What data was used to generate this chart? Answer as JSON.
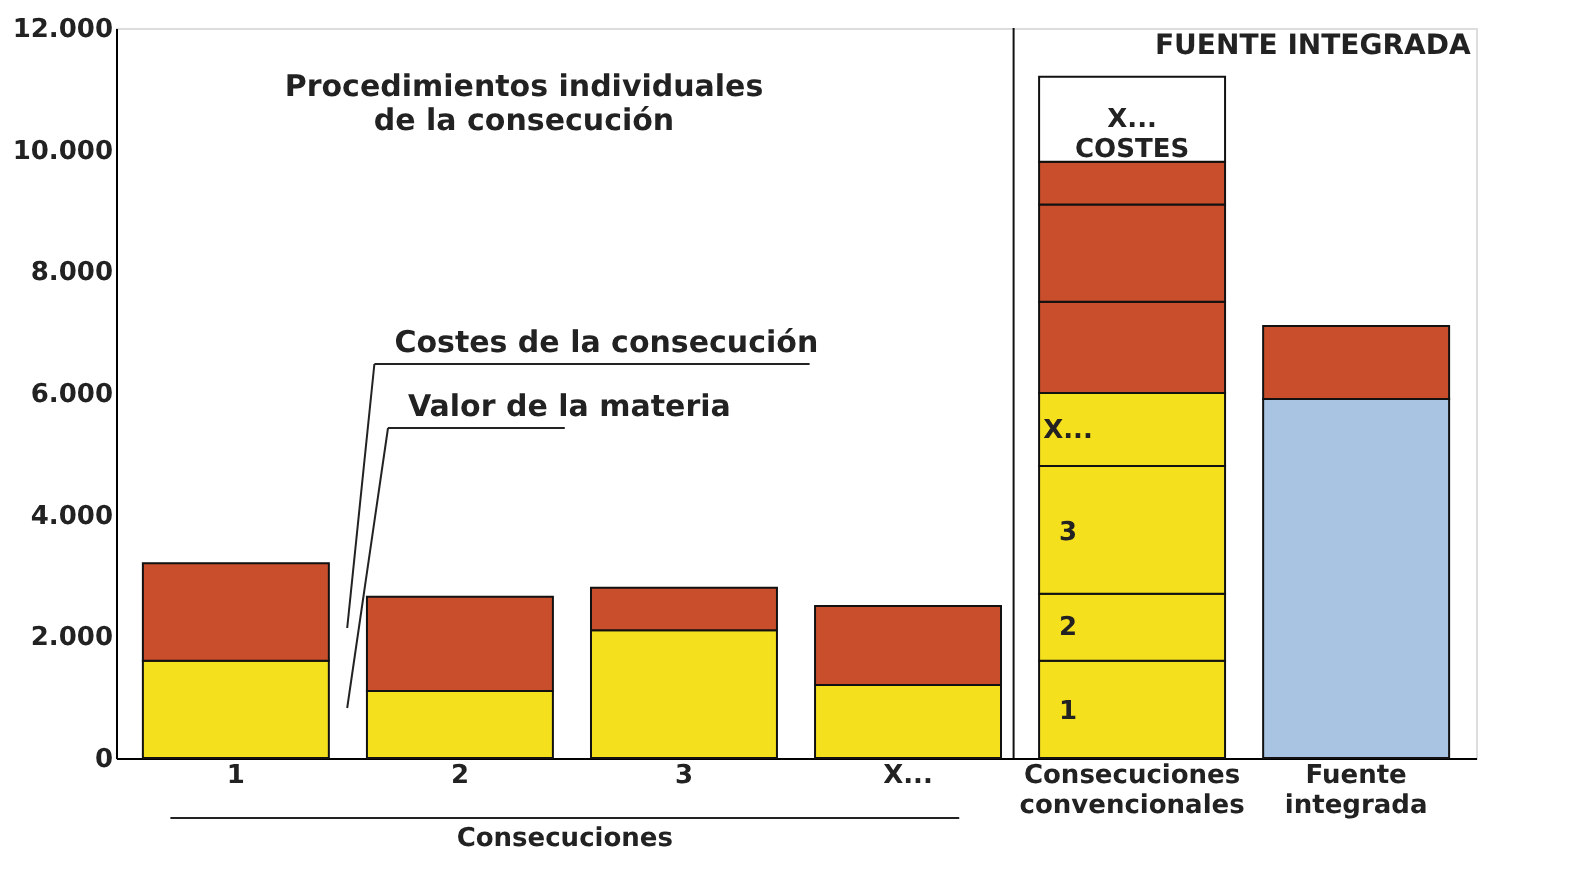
{
  "chart_data": {
    "type": "bar",
    "stacked": true,
    "categories": [
      "1",
      "2",
      "3",
      "X...",
      "Consecuciones convencionales",
      "Fuente integrada"
    ],
    "xlabel": "Consecuciones",
    "series": [
      {
        "color": "#f5e01e",
        "values": [
          1600,
          1100,
          2100,
          1200,
          1600,
          null
        ]
      },
      {
        "color": "#f5e01e",
        "values": [
          null,
          null,
          null,
          null,
          1100,
          null
        ]
      },
      {
        "color": "#f5e01e",
        "values": [
          null,
          null,
          null,
          null,
          2100,
          null
        ]
      },
      {
        "color": "#f5e01e",
        "values": [
          null,
          null,
          null,
          null,
          1200,
          null
        ]
      },
      {
        "color": "#a9c4e2",
        "values": [
          null,
          null,
          null,
          null,
          null,
          5900
        ]
      },
      {
        "color": "#c94f2c",
        "values": [
          1600,
          1550,
          700,
          1300,
          1500,
          1200
        ]
      },
      {
        "color": "#c94f2c",
        "values": [
          null,
          null,
          null,
          null,
          1600,
          null
        ]
      },
      {
        "color": "#c94f2c",
        "values": [
          null,
          null,
          null,
          null,
          700,
          null
        ]
      },
      {
        "color": "#ffffff",
        "values": [
          null,
          null,
          null,
          null,
          1400,
          null
        ],
        "value_labels": [
          null,
          null,
          null,
          null,
          "X...\nCOSTES",
          null
        ]
      }
    ],
    "ylim": [
      0,
      12000
    ],
    "yticks": [
      0,
      {
        "value": 2000,
        "label": "2.000"
      },
      {
        "value": 4000,
        "label": "4.000"
      },
      {
        "value": 6000,
        "label": "6.000"
      },
      {
        "value": 8000,
        "label": "8.000"
      },
      {
        "value": 10000,
        "label": "10.000"
      },
      {
        "value": 12000,
        "label": "12.000"
      }
    ],
    "annotations": [
      "Procedimientos individuales\nde la consecución",
      "FUENTE INTEGRADA",
      "Costes de la consecución",
      "Valor de la materia",
      "1",
      "2",
      "3",
      "X..."
    ],
    "grid": false,
    "legend": false
  }
}
